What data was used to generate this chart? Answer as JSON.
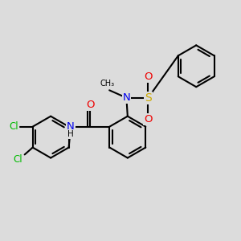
{
  "bg_color": "#dcdcdc",
  "bond_color": "#000000",
  "bond_width": 1.5,
  "dbo": 0.12,
  "atom_colors": {
    "C": "#000000",
    "N": "#0000ee",
    "O": "#ee0000",
    "S": "#ccaa00",
    "Cl": "#00bb00",
    "H": "#000000"
  },
  "font_size": 8.5,
  "fig_size": [
    3.0,
    3.0
  ],
  "dpi": 100
}
